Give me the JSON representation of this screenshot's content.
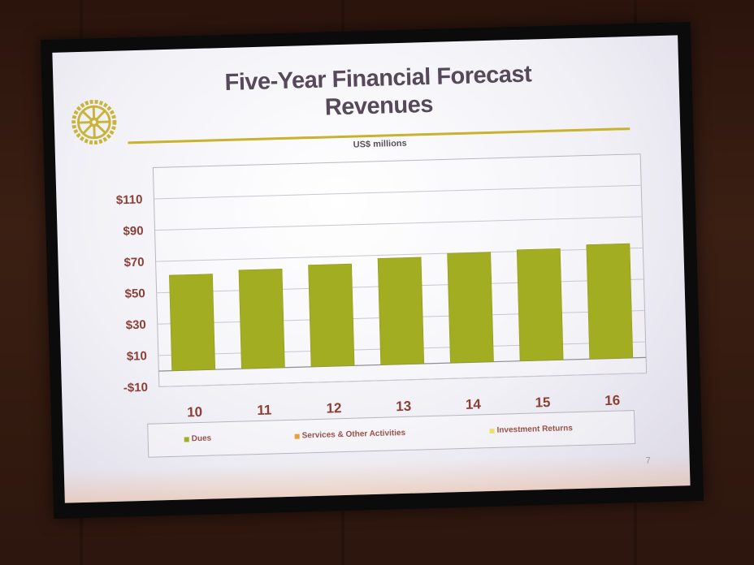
{
  "slide": {
    "title_line1": "Five-Year Financial Forecast",
    "title_line2": "Revenues",
    "units": "US$ millions",
    "page_number": "7",
    "logo_icon": "rotary-wheel-icon"
  },
  "colors": {
    "dues": "#a2ad22",
    "services": "#e8a13a",
    "investment": "#eae26a",
    "axis_text": "#8b4036",
    "title_rule": "#c8b22e"
  },
  "chart_data": {
    "type": "bar",
    "categories": [
      "10",
      "11",
      "12",
      "13",
      "14",
      "15",
      "16"
    ],
    "series": [
      {
        "name": "Dues",
        "values": [
          61,
          63,
          65,
          68,
          70,
          71,
          73
        ]
      },
      {
        "name": "Services & Other Activities",
        "values": [
          0,
          0,
          0,
          0,
          0,
          0,
          0
        ]
      },
      {
        "name": "Investment Returns",
        "values": [
          0,
          0,
          0,
          0,
          0,
          0,
          0
        ]
      }
    ],
    "yticks": [
      "$110",
      "$90",
      "$70",
      "$50",
      "$30",
      "$10",
      "-$10"
    ],
    "ylim": [
      -10,
      130
    ],
    "grid": true,
    "legend_position": "bottom"
  }
}
